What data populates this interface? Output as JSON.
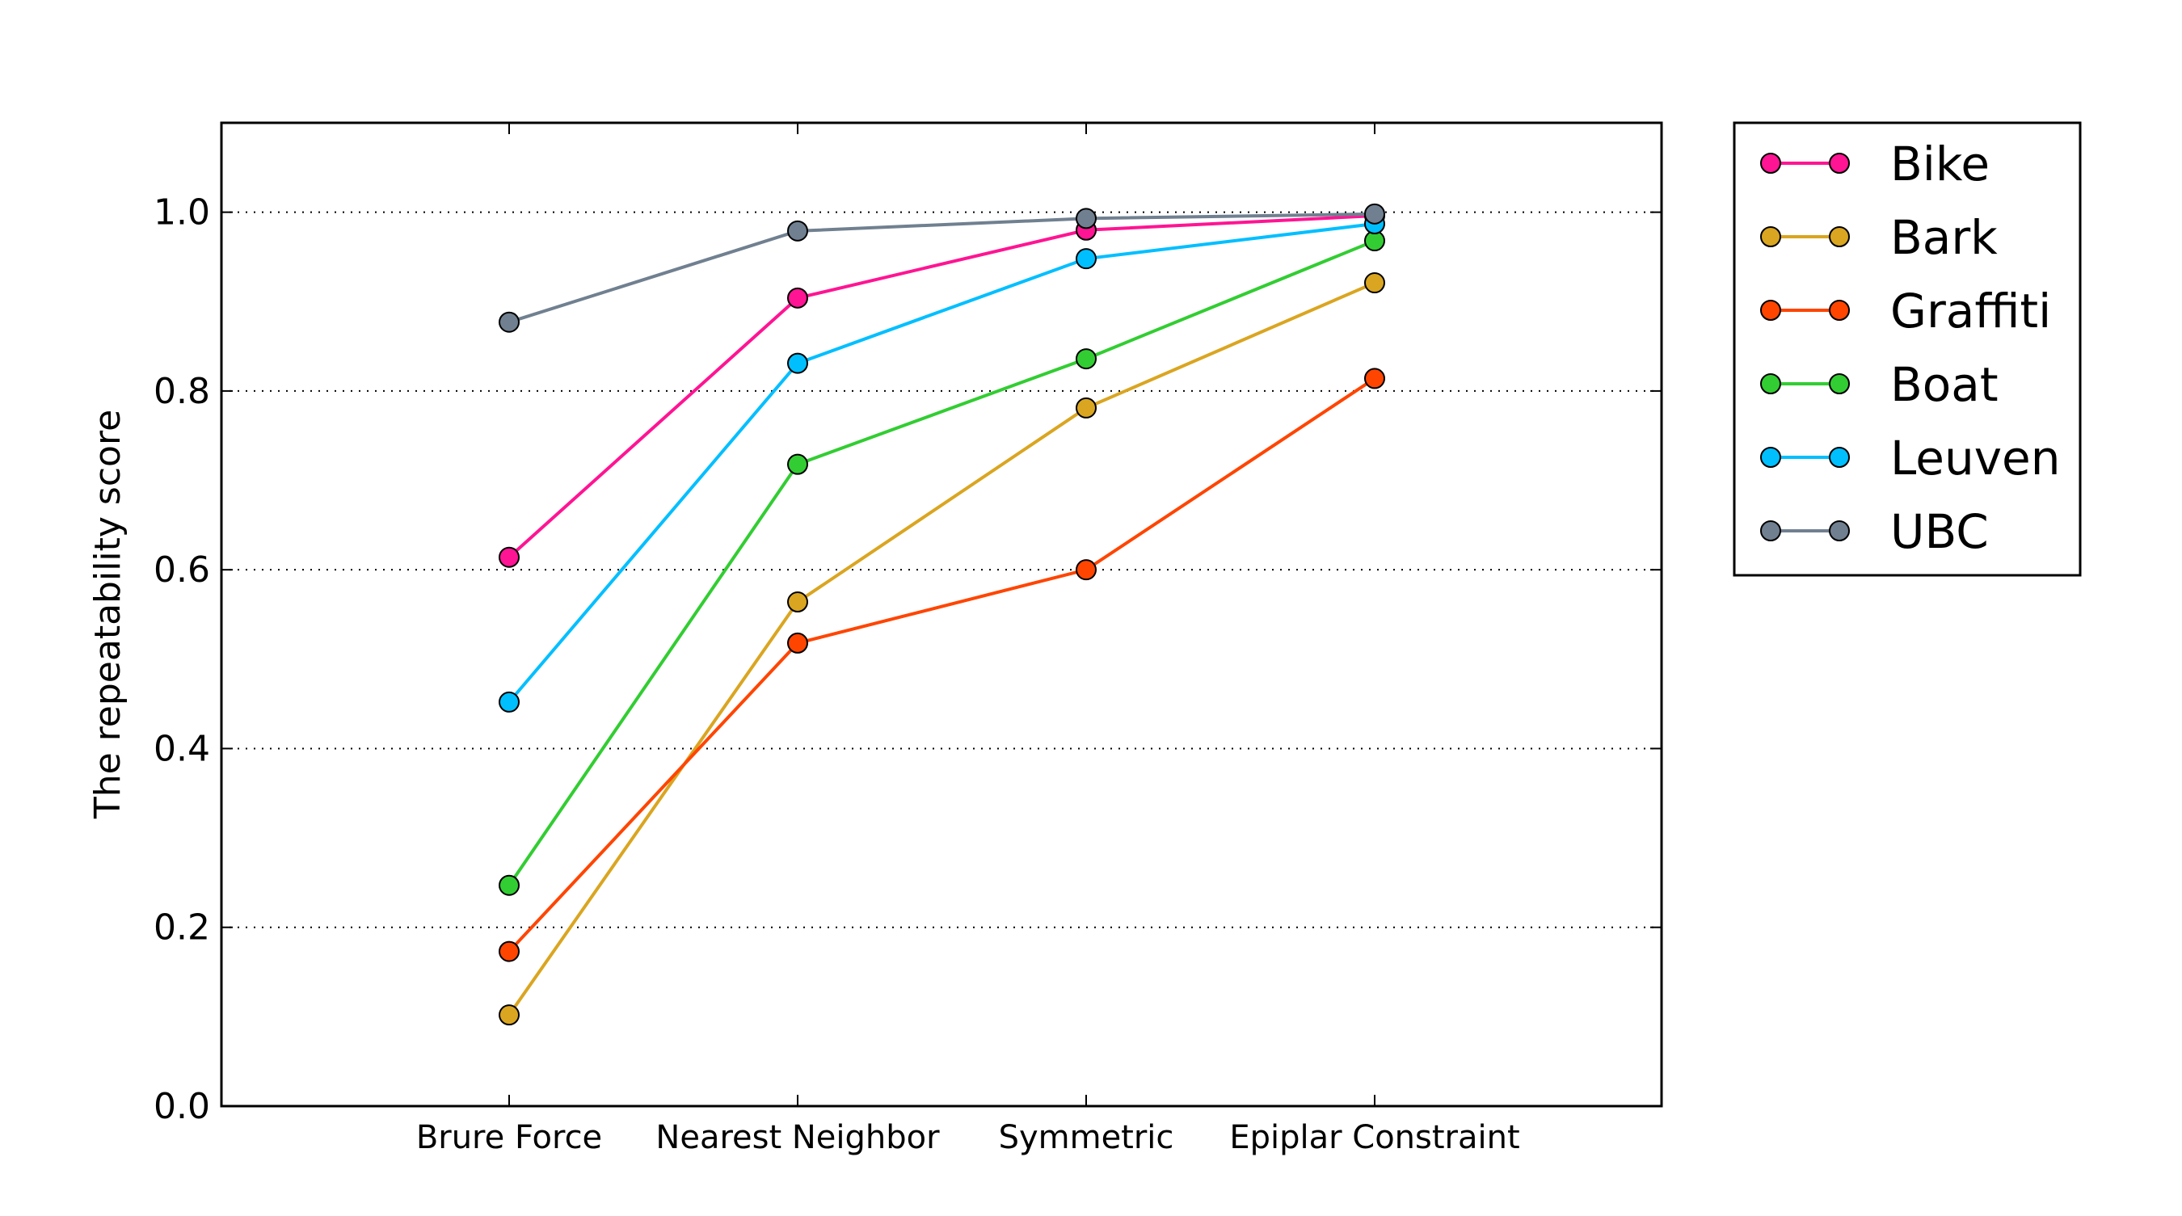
{
  "chart_data": {
    "type": "line",
    "title": "",
    "xlabel": "",
    "ylabel": "The repeatability score",
    "categories": [
      "Brure Force",
      "Nearest Neighbor",
      "Symmetric",
      "Epiplar Constraint"
    ],
    "ylim": [
      0.0,
      1.1
    ],
    "yticks": [
      "0.0",
      "0.2",
      "0.4",
      "0.6",
      "0.8",
      "1.0"
    ],
    "grid": "horizontal dotted",
    "legend_position": "outside-right-top",
    "series": [
      {
        "name": "Bike",
        "color": "#ff1493",
        "values": [
          0.614,
          0.904,
          0.98,
          0.996
        ]
      },
      {
        "name": "Bark",
        "color": "#daa520",
        "values": [
          0.102,
          0.564,
          0.781,
          0.921
        ]
      },
      {
        "name": "Graffiti",
        "color": "#ff4500",
        "values": [
          0.173,
          0.518,
          0.6,
          0.814
        ]
      },
      {
        "name": "Boat",
        "color": "#32cd32",
        "values": [
          0.247,
          0.718,
          0.836,
          0.968
        ]
      },
      {
        "name": "Leuven",
        "color": "#00bfff",
        "values": [
          0.452,
          0.831,
          0.948,
          0.987
        ]
      },
      {
        "name": "UBC",
        "color": "#708090",
        "values": [
          0.877,
          0.979,
          0.993,
          0.998
        ]
      }
    ]
  }
}
